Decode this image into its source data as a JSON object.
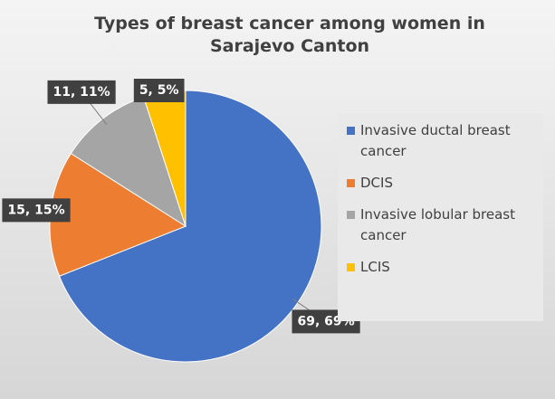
{
  "chart_data": {
    "type": "pie",
    "title": "Types of breast cancer among women in Sarajevo Canton",
    "categories": [
      "Invasive ductal breast cancer",
      "DCIS",
      "Invasive lobular breast cancer",
      "LCIS"
    ],
    "values": [
      69,
      15,
      11,
      5
    ],
    "value_labels": [
      "69, 69%",
      "15, 15%",
      "11, 11%",
      "5, 5%"
    ],
    "colors": [
      "#4472c4",
      "#ed7d31",
      "#a5a5a5",
      "#ffc000"
    ],
    "legend": "right"
  }
}
